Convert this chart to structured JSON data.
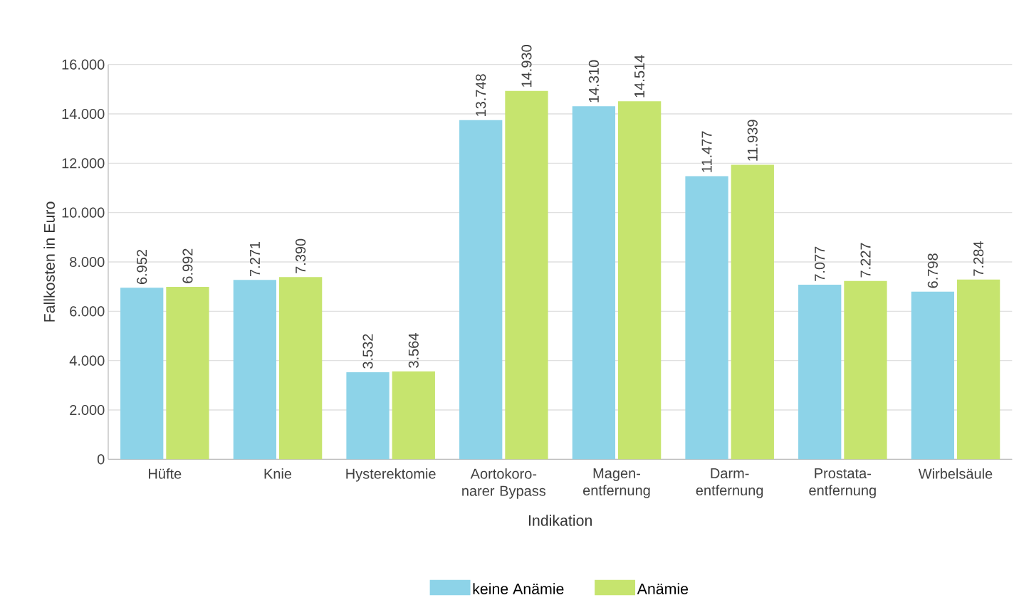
{
  "chart_data": {
    "type": "bar",
    "xlabel": "Indikation",
    "ylabel": "Fallkosten in Euro",
    "categories": [
      "Hüfte",
      "Knie",
      "Hysterektomie",
      "Aortokoro- narer Bypass",
      "Magen- entfernung",
      "Darm- entfernung",
      "Prostata- entfernung",
      "Wirbelsäule"
    ],
    "series": [
      {
        "name": "keine Anämie",
        "color": "#8dd3e8",
        "values": [
          6952,
          7271,
          3532,
          13748,
          14310,
          11477,
          7077,
          6798
        ],
        "value_labels": [
          "6.952",
          "7.271",
          "3.532",
          "13.748",
          "14.310",
          "11.477",
          "7.077",
          "6.798"
        ]
      },
      {
        "name": "Anämie",
        "color": "#c6e46e",
        "values": [
          6992,
          7390,
          3564,
          14930,
          14514,
          11939,
          7227,
          7284
        ],
        "value_labels": [
          "6.992",
          "7.390",
          "3.564",
          "14.930",
          "14.514",
          "11.939",
          "7.227",
          "7.284"
        ]
      }
    ],
    "ylim": [
      0,
      16000
    ],
    "yticks": [
      {
        "value": 0,
        "label": "0"
      },
      {
        "value": 2000,
        "label": "2.000"
      },
      {
        "value": 4000,
        "label": "4.000"
      },
      {
        "value": 6000,
        "label": "6.000"
      },
      {
        "value": 8000,
        "label": "8.000"
      },
      {
        "value": 10000,
        "label": "10.000"
      },
      {
        "value": 12000,
        "label": "12.000"
      },
      {
        "value": 14000,
        "label": "14.000"
      },
      {
        "value": 16000,
        "label": "16.000"
      }
    ],
    "grid": "y",
    "legend": "bottom"
  }
}
